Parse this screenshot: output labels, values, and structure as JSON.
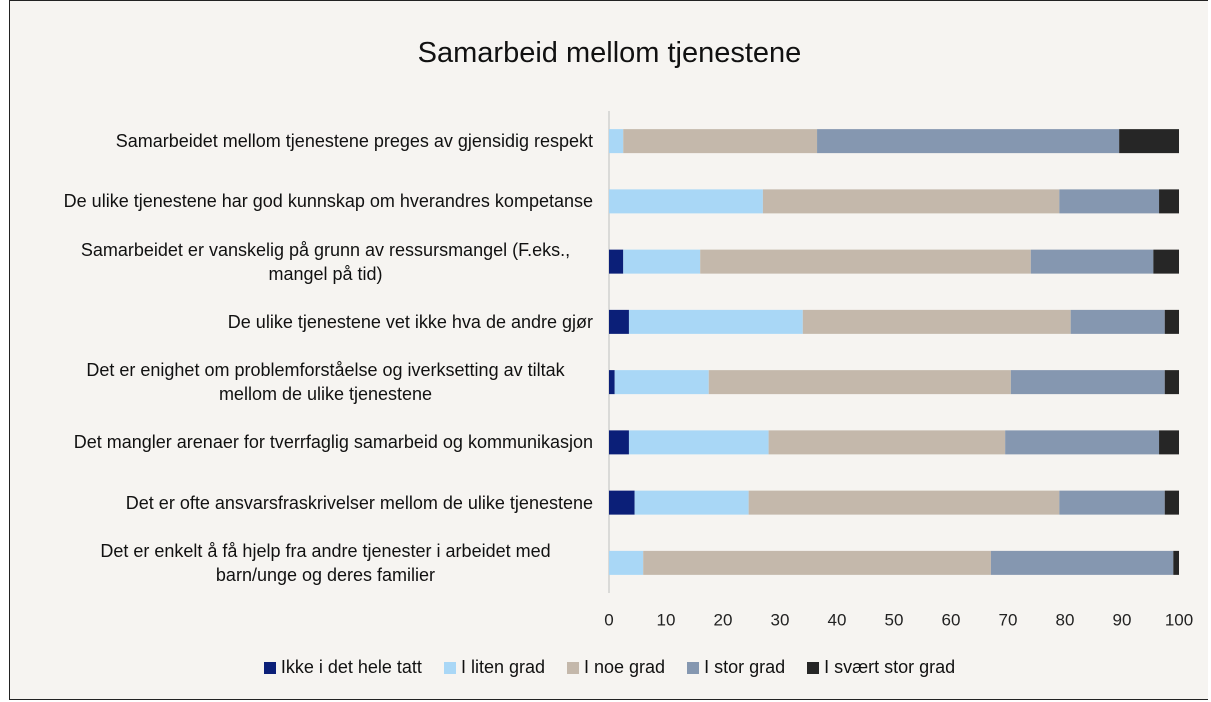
{
  "chart_data": {
    "type": "stacked_barh",
    "title": "Samarbeid mellom tjenestene",
    "categories": [
      "Samarbeidet mellom tjenestene preges av gjensidig respekt",
      "De ulike tjenestene har god kunnskap om hverandres kompetanse",
      "Samarbeidet er vanskelig på grunn av ressursmangel (F.eks., mangel på tid)",
      "De ulike tjenestene vet ikke hva de andre gjør",
      "Det er enighet om problemforståelse og iverksetting av tiltak mellom de ulike tjenestene",
      "Det mangler arenaer for tverrfaglig samarbeid og kommunikasjon",
      "Det er ofte ansvarsfraskrivelser mellom de ulike tjenestene",
      "Det er enkelt å få hjelp fra andre tjenester i arbeidet med barn/unge og deres familier"
    ],
    "series": [
      {
        "name": "Ikke i det hele tatt",
        "color": "#0b1f78",
        "values": [
          0,
          0,
          2.5,
          3.5,
          1,
          3.5,
          4.5,
          0
        ]
      },
      {
        "name": "I liten grad",
        "color": "#a9d7f6",
        "values": [
          2.5,
          27,
          13.5,
          30.5,
          16.5,
          24.5,
          20,
          6
        ]
      },
      {
        "name": "I noe grad",
        "color": "#c4b8ab",
        "values": [
          34,
          52,
          58,
          47,
          53,
          41.5,
          54.5,
          61
        ]
      },
      {
        "name": "I stor grad",
        "color": "#8597b0",
        "values": [
          53,
          17.5,
          21.5,
          16.5,
          27,
          27,
          18.5,
          32
        ]
      },
      {
        "name": "I svært stor grad",
        "color": "#262626",
        "values": [
          10.5,
          3.5,
          4.5,
          2.5,
          2.5,
          3.5,
          2.5,
          1
        ]
      }
    ],
    "xlim": [
      0,
      100
    ],
    "xticks": [
      0,
      10,
      20,
      30,
      40,
      50,
      60,
      70,
      80,
      90,
      100
    ],
    "legend": "bottom"
  }
}
